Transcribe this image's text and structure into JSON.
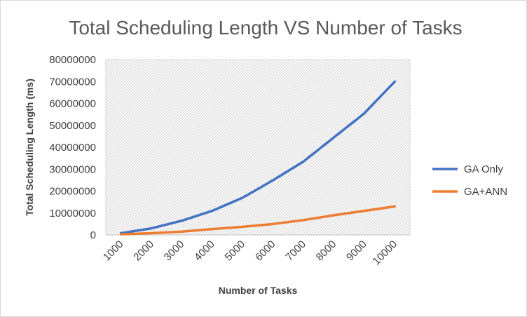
{
  "chart_data": {
    "type": "line",
    "title": "Total Scheduling Length VS Number of Tasks",
    "xlabel": "Number of Tasks",
    "ylabel": "Total Scheduling Length (ms)",
    "categories": [
      "1000",
      "2000",
      "3000",
      "4000",
      "5000",
      "6000",
      "7000",
      "8000",
      "9000",
      "10000"
    ],
    "ylim": [
      0,
      80000000
    ],
    "yticks": [
      "0",
      "10000000",
      "20000000",
      "30000000",
      "40000000",
      "50000000",
      "60000000",
      "70000000",
      "80000000"
    ],
    "grid": "on (hatched plot area)",
    "legend_position": "right",
    "series": [
      {
        "name": "GA Only",
        "color": "#4472c4",
        "values": [
          800000,
          3000000,
          6500000,
          11000000,
          17000000,
          25000000,
          33500000,
          44500000,
          55500000,
          70000000
        ]
      },
      {
        "name": "GA+ANN",
        "color": "#ed7d31",
        "values": [
          300000,
          800000,
          1500000,
          2700000,
          3700000,
          5000000,
          6800000,
          9000000,
          11000000,
          13000000
        ]
      }
    ]
  }
}
